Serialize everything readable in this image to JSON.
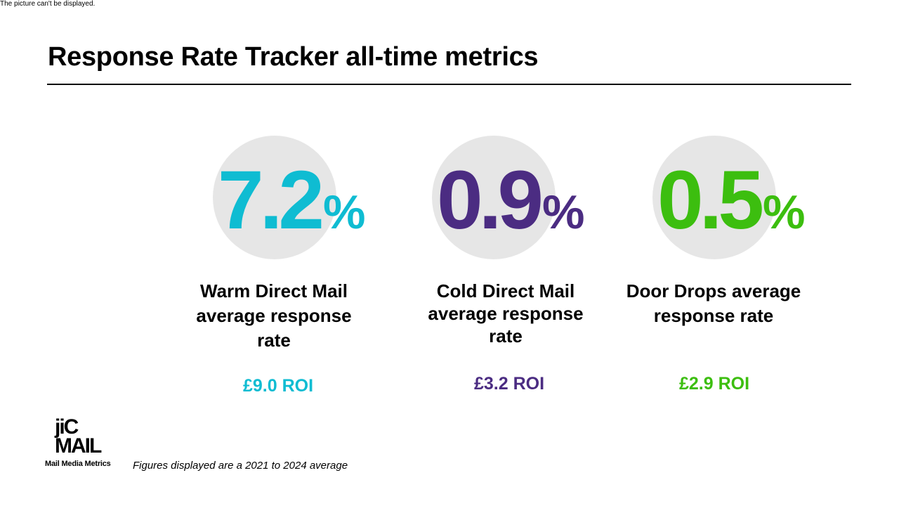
{
  "broken_image_text": "The picture can't be displayed.",
  "title": "Response Rate Tracker all-time metrics",
  "metrics": [
    {
      "value": "7.2",
      "unit": "%",
      "label_lines": [
        "Warm Direct Mail",
        "average response",
        "rate"
      ],
      "roi": "£9.0 ROI",
      "color": "#0fbcd2"
    },
    {
      "value": "0.9",
      "unit": "%",
      "label_lines": [
        "Cold Direct Mail",
        "average response",
        "rate"
      ],
      "roi": "£3.2 ROI",
      "color": "#4b2c82"
    },
    {
      "value": "0.5",
      "unit": "%",
      "label_lines": [
        "Door Drops average",
        "response rate"
      ],
      "roi": "£2.9 ROI",
      "color": "#3cbe0f"
    }
  ],
  "logo": {
    "mark_line1": "jiC",
    "mark_line2": "MAIL",
    "caption": "Mail Media Metrics"
  },
  "footnote": "Figures displayed are a 2021 to 2024 average"
}
